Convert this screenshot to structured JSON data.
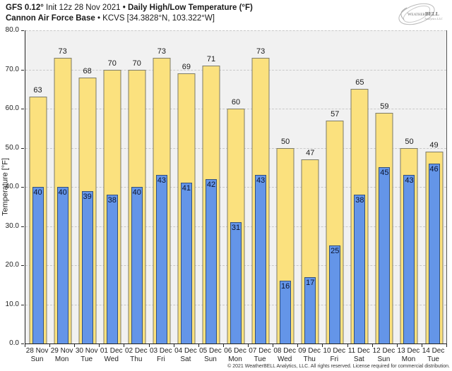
{
  "header": {
    "title_model": "GFS 0.12°",
    "title_init": " Init 12z 28 Nov 2021 ",
    "title_sep": "• ",
    "title_main": "Daily High/Low Temperature (°F)",
    "subtitle_station": "Cannon Air Force Base",
    "subtitle_sep": " • ",
    "subtitle_location": "KCVS [34.3828°N, 103.322°W]"
  },
  "logo": {
    "text_weather": "Weather",
    "text_bell": "BELL",
    "text_sub": "Analytics LLC"
  },
  "chart_data": {
    "type": "bar",
    "title": "Daily High/Low Temperature (°F)",
    "station": "Cannon Air Force Base (KCVS)",
    "ylabel": "Temperature [°F]",
    "ylim": [
      0,
      80
    ],
    "ytick_step": 10,
    "grid": "horizontal dashed",
    "legend_position": "none",
    "categories": [
      "28 Nov",
      "29 Nov",
      "30 Nov",
      "01 Dec",
      "02 Dec",
      "03 Dec",
      "04 Dec",
      "05 Dec",
      "06 Dec",
      "07 Dec",
      "08 Dec",
      "09 Dec",
      "10 Dec",
      "11 Dec",
      "12 Dec",
      "13 Dec",
      "14 Dec"
    ],
    "weekday_labels": [
      "Sun",
      "Mon",
      "Tue",
      "Wed",
      "Thu",
      "Fri",
      "Sat",
      "Sun",
      "Mon",
      "Tue",
      "Wed",
      "Thu",
      "Fri",
      "Sat",
      "Sun",
      "Mon",
      "Tue"
    ],
    "series": [
      {
        "name": "Daily High",
        "color": "#FBE17E",
        "values": [
          63,
          73,
          68,
          70,
          70,
          73,
          69,
          71,
          60,
          73,
          50,
          47,
          57,
          65,
          59,
          50,
          49
        ]
      },
      {
        "name": "Daily Low",
        "color": "#6495E8",
        "values": [
          40,
          40,
          39,
          38,
          40,
          43,
          41,
          42,
          31,
          43,
          16,
          17,
          25,
          38,
          45,
          43,
          46
        ]
      }
    ]
  },
  "colors": {
    "high_bar": "#FBE17E",
    "low_bar": "#6495E8",
    "plot_background": "#f1f1f1",
    "gridline": "#c9c9c9",
    "axis": "#222222"
  },
  "footer": {
    "copyright": "© 2021 WeatherBELL Analytics, LLC. All rights reserved. License required for commercial distribution."
  }
}
